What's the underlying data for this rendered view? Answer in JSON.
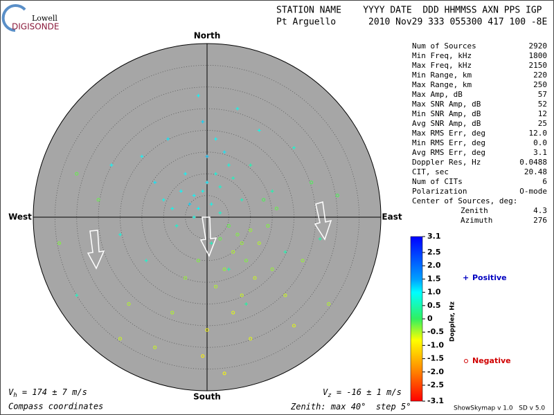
{
  "logo": {
    "top": "Lowell",
    "bottom": "DIGISONDE"
  },
  "header": {
    "labels": "STATION NAME    YYYY DATE  DDD HHMMSS AXN PPS IGP",
    "values": "Pt Arguello      2010 Nov29 333 055300 417 100 -8E"
  },
  "stats": [
    {
      "label": "Num of Sources",
      "value": 2920
    },
    {
      "label": "Min Freq, kHz",
      "value": 1800
    },
    {
      "label": "Max Freq, kHz",
      "value": 2150
    },
    {
      "label": "Min Range, km",
      "value": 220
    },
    {
      "label": "Max Range, km",
      "value": 250
    },
    {
      "label": "Max Amp, dB",
      "value": 57
    },
    {
      "label": "Max SNR Amp, dB",
      "value": 52
    },
    {
      "label": "Min SNR Amp, dB",
      "value": 12
    },
    {
      "label": "Avg SNR Amp, dB",
      "value": 25
    },
    {
      "label": "Max RMS Err, deg",
      "value": "12.0"
    },
    {
      "label": "Min RMS Err, deg",
      "value": "0.0"
    },
    {
      "label": "Avg RMS Err, deg",
      "value": 3.1
    },
    {
      "label": "Doppler Res, Hz",
      "value": 0.0488
    },
    {
      "label": "CIT, sec",
      "value": 20.48
    },
    {
      "label": "Num of CITs",
      "value": 6
    },
    {
      "label": "Polarization",
      "value": "O-mode"
    }
  ],
  "center": {
    "label": "Center of Sources, deg:",
    "zenith_label": "Zenith",
    "zenith": 4.3,
    "azimuth_label": "Azimuth",
    "azimuth": 276
  },
  "compass": {
    "north": "North",
    "south": "South",
    "east": "East",
    "west": "West"
  },
  "colorbar": {
    "title": "Doppler, Hz",
    "range": [
      -3.1,
      3.1
    ],
    "ticks": [
      3.1,
      2.5,
      {
        "value": 2,
        "label": "2.0"
      },
      1.5,
      {
        "value": 1,
        "label": "1.0"
      },
      0.5,
      0,
      -0.5,
      {
        "value": -1,
        "label": "-1.0"
      },
      -1.5,
      {
        "value": -2,
        "label": "-2.0"
      },
      -2.5,
      -3.1
    ]
  },
  "legend": {
    "positive": "Positive",
    "negative": "Negative"
  },
  "footer": {
    "vh": {
      "symbol": "V",
      "sub": "h",
      "text": " = 174 ± 7 m/s"
    },
    "vz": {
      "symbol": "V",
      "sub": "z",
      "text": " = -16 ± 1 m/s"
    },
    "coords": "Compass coordinates",
    "zenith_prefix": "Zenith: max ",
    "zenith_max": 40,
    "zenith_mid": "°  step ",
    "zenith_step": 5,
    "zenith_suffix": "°",
    "version": "ShowSkymap v 1.0   SD v 5.0"
  },
  "sources": {
    "positive": [
      [
        -3,
        5,
        1.0
      ],
      [
        -1,
        6,
        0.9
      ],
      [
        0,
        8,
        1.1
      ],
      [
        2,
        10,
        0.8
      ],
      [
        -4,
        3,
        1.2
      ],
      [
        -2,
        2,
        1.0
      ],
      [
        1,
        3,
        0.9
      ],
      [
        3,
        7,
        0.7
      ],
      [
        5,
        12,
        0.8
      ],
      [
        -6,
        6,
        1.0
      ],
      [
        -8,
        2,
        0.9
      ],
      [
        4,
        15,
        1.1
      ],
      [
        6,
        9,
        0.6
      ],
      [
        0,
        14,
        1.3
      ],
      [
        -5,
        10,
        1.0
      ],
      [
        8,
        4,
        0.6
      ],
      [
        -10,
        4,
        0.9
      ],
      [
        2,
        18,
        1.0
      ],
      [
        -12,
        8,
        1.1
      ],
      [
        10,
        12,
        0.5
      ],
      [
        -3,
        0,
        0.8
      ],
      [
        3,
        1,
        0.7
      ],
      [
        -7,
        -2,
        0.7
      ],
      [
        12,
        20,
        0.9
      ],
      [
        -15,
        14,
        1.0
      ],
      [
        15,
        6,
        0.5
      ],
      [
        -20,
        -4,
        0.8
      ],
      [
        1,
        -6,
        0.6
      ],
      [
        -1,
        22,
        1.2
      ],
      [
        7,
        25,
        0.9
      ],
      [
        -9,
        18,
        1.1
      ],
      [
        20,
        16,
        0.7
      ],
      [
        -22,
        12,
        1.0
      ],
      [
        5,
        -12,
        0.5
      ],
      [
        -14,
        -10,
        0.7
      ],
      [
        18,
        -8,
        0.5
      ],
      [
        -30,
        -18,
        0.6
      ],
      [
        26,
        -5,
        0.4
      ],
      [
        -2,
        28,
        1.0
      ],
      [
        9,
        -20,
        0.4
      ]
    ],
    "negative": [
      [
        7,
        -4,
        -0.3
      ],
      [
        8,
        -6,
        -0.4
      ],
      [
        5,
        -2,
        -0.2
      ],
      [
        10,
        -3,
        -0.4
      ],
      [
        6,
        -8,
        -0.5
      ],
      [
        9,
        -10,
        -0.3
      ],
      [
        3,
        -5,
        -0.2
      ],
      [
        12,
        -6,
        -0.5
      ],
      [
        4,
        -12,
        -0.4
      ],
      [
        11,
        -14,
        -0.6
      ],
      [
        14,
        -2,
        -0.3
      ],
      [
        2,
        -16,
        -0.5
      ],
      [
        8,
        -18,
        -0.6
      ],
      [
        15,
        -12,
        -0.4
      ],
      [
        -2,
        -10,
        -0.3
      ],
      [
        6,
        -22,
        -0.7
      ],
      [
        16,
        2,
        -0.2
      ],
      [
        -5,
        -14,
        -0.4
      ],
      [
        18,
        -18,
        -0.6
      ],
      [
        0,
        -26,
        -0.8
      ],
      [
        10,
        -28,
        -0.7
      ],
      [
        -8,
        -22,
        -0.5
      ],
      [
        22,
        -10,
        -0.4
      ],
      [
        13,
        4,
        -0.1
      ],
      [
        -12,
        -30,
        -0.6
      ],
      [
        -1,
        -32,
        -0.9
      ],
      [
        20,
        -25,
        -0.7
      ],
      [
        -18,
        -20,
        -0.5
      ],
      [
        -25,
        4,
        -0.2
      ],
      [
        24,
        8,
        -0.1
      ],
      [
        -30,
        10,
        -0.2
      ],
      [
        4,
        -36,
        -0.8
      ],
      [
        28,
        -20,
        -0.5
      ],
      [
        -20,
        -28,
        -0.6
      ],
      [
        30,
        5,
        -0.1
      ],
      [
        -34,
        -6,
        -0.3
      ]
    ]
  }
}
